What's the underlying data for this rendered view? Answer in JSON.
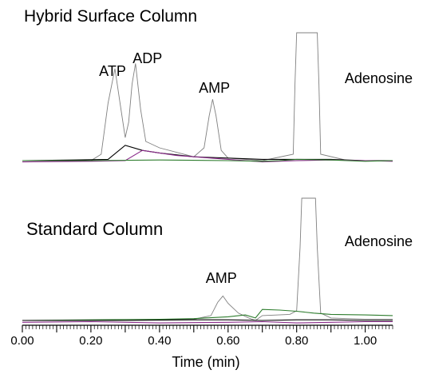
{
  "chart_data": {
    "type": "line",
    "xlabel": "Time (min)",
    "xlim": [
      0.0,
      1.08
    ],
    "xtick_labels": [
      "0.00",
      "0.20",
      "0.40",
      "0.60",
      "0.80",
      "1.00"
    ],
    "xticks": [
      0.0,
      0.2,
      0.4,
      0.6,
      0.8,
      1.0
    ],
    "grid": false,
    "panels": [
      {
        "title": "Hybrid Surface Column",
        "title_color": "#5a1a8c",
        "annotations": [
          {
            "text": "ATP",
            "x": 0.27
          },
          {
            "text": "ADP",
            "x": 0.33
          },
          {
            "text": "AMP",
            "x": 0.56
          },
          {
            "text": "Adenosine",
            "x": 0.84
          }
        ],
        "series": [
          {
            "color": "#808080",
            "x": [
              0.0,
              0.2,
              0.23,
              0.25,
              0.27,
              0.285,
              0.3,
              0.31,
              0.32,
              0.33,
              0.345,
              0.36,
              0.4,
              0.5,
              0.53,
              0.545,
              0.555,
              0.565,
              0.58,
              0.6,
              0.7,
              0.79,
              0.795,
              0.8,
              0.86,
              0.865,
              0.87,
              0.95,
              1.08
            ],
            "y": [
              0.0,
              0.0,
              0.05,
              0.45,
              0.72,
              0.45,
              0.18,
              0.3,
              0.6,
              0.76,
              0.4,
              0.15,
              0.1,
              0.03,
              0.1,
              0.35,
              0.48,
              0.35,
              0.08,
              0.02,
              0.0,
              0.05,
              0.6,
              1.0,
              1.0,
              0.6,
              0.05,
              0.0,
              0.0
            ]
          },
          {
            "color": "#000000",
            "x": [
              0.0,
              0.15,
              0.25,
              0.3,
              0.35,
              0.4,
              0.5,
              0.6,
              0.7,
              0.8,
              0.9,
              1.0,
              1.08
            ],
            "y": [
              0.0,
              0.005,
              0.01,
              0.12,
              0.08,
              0.06,
              0.03,
              0.02,
              0.01,
              0.01,
              0.01,
              0.0,
              0.0
            ]
          },
          {
            "color": "#8a2a8a",
            "x": [
              0.0,
              0.2,
              0.3,
              0.35,
              0.4,
              0.45,
              0.5,
              0.55,
              0.6,
              0.65,
              0.7,
              0.8,
              0.9,
              1.0,
              1.08
            ],
            "y": [
              -0.01,
              -0.005,
              0.0,
              0.08,
              0.06,
              0.04,
              0.03,
              0.02,
              0.01,
              0.0,
              -0.01,
              0.0,
              0.005,
              0.0,
              -0.005
            ]
          },
          {
            "color": "#2e7d2e",
            "x": [
              0.0,
              0.2,
              0.4,
              0.6,
              0.7,
              0.75,
              0.8,
              0.9,
              1.0,
              1.08
            ],
            "y": [
              0.0,
              0.0,
              0.005,
              0.0,
              -0.005,
              0.0,
              0.01,
              0.005,
              -0.005,
              0.0
            ]
          }
        ]
      },
      {
        "title": "Standard Column",
        "title_color": "#000000",
        "annotations": [
          {
            "text": "AMP",
            "x": 0.58
          },
          {
            "text": "Adenosine",
            "x": 0.84
          }
        ],
        "series": [
          {
            "color": "#808080",
            "x": [
              0.0,
              0.3,
              0.5,
              0.55,
              0.57,
              0.585,
              0.6,
              0.63,
              0.66,
              0.68,
              0.7,
              0.78,
              0.8,
              0.81,
              0.815,
              0.855,
              0.86,
              0.87,
              0.9,
              1.0,
              1.08
            ],
            "y": [
              0.0,
              0.0,
              0.01,
              0.04,
              0.15,
              0.2,
              0.14,
              0.06,
              0.02,
              0.0,
              0.04,
              0.05,
              0.08,
              0.6,
              1.0,
              1.0,
              0.6,
              0.06,
              0.02,
              0.01,
              0.01
            ]
          },
          {
            "color": "#2e7d2e",
            "x": [
              0.0,
              0.2,
              0.4,
              0.5,
              0.6,
              0.65,
              0.68,
              0.7,
              0.75,
              0.8,
              0.85,
              0.9,
              1.0,
              1.08
            ],
            "y": [
              0.0,
              0.005,
              0.01,
              0.015,
              0.03,
              0.045,
              0.02,
              0.09,
              0.085,
              0.075,
              0.06,
              0.05,
              0.045,
              0.04
            ]
          },
          {
            "color": "#000000",
            "x": [
              0.0,
              0.3,
              0.5,
              0.6,
              0.7,
              0.8,
              0.9,
              1.0,
              1.08
            ],
            "y": [
              0.0,
              0.0,
              0.005,
              0.005,
              0.0,
              0.005,
              0.005,
              0.0,
              0.0
            ]
          },
          {
            "color": "#8a2a8a",
            "x": [
              0.0,
              0.2,
              0.4,
              0.6,
              0.7,
              0.8,
              0.9,
              1.0,
              1.08
            ],
            "y": [
              -0.015,
              -0.01,
              -0.02,
              -0.015,
              -0.01,
              -0.02,
              -0.015,
              -0.01,
              -0.01
            ]
          }
        ]
      }
    ]
  }
}
